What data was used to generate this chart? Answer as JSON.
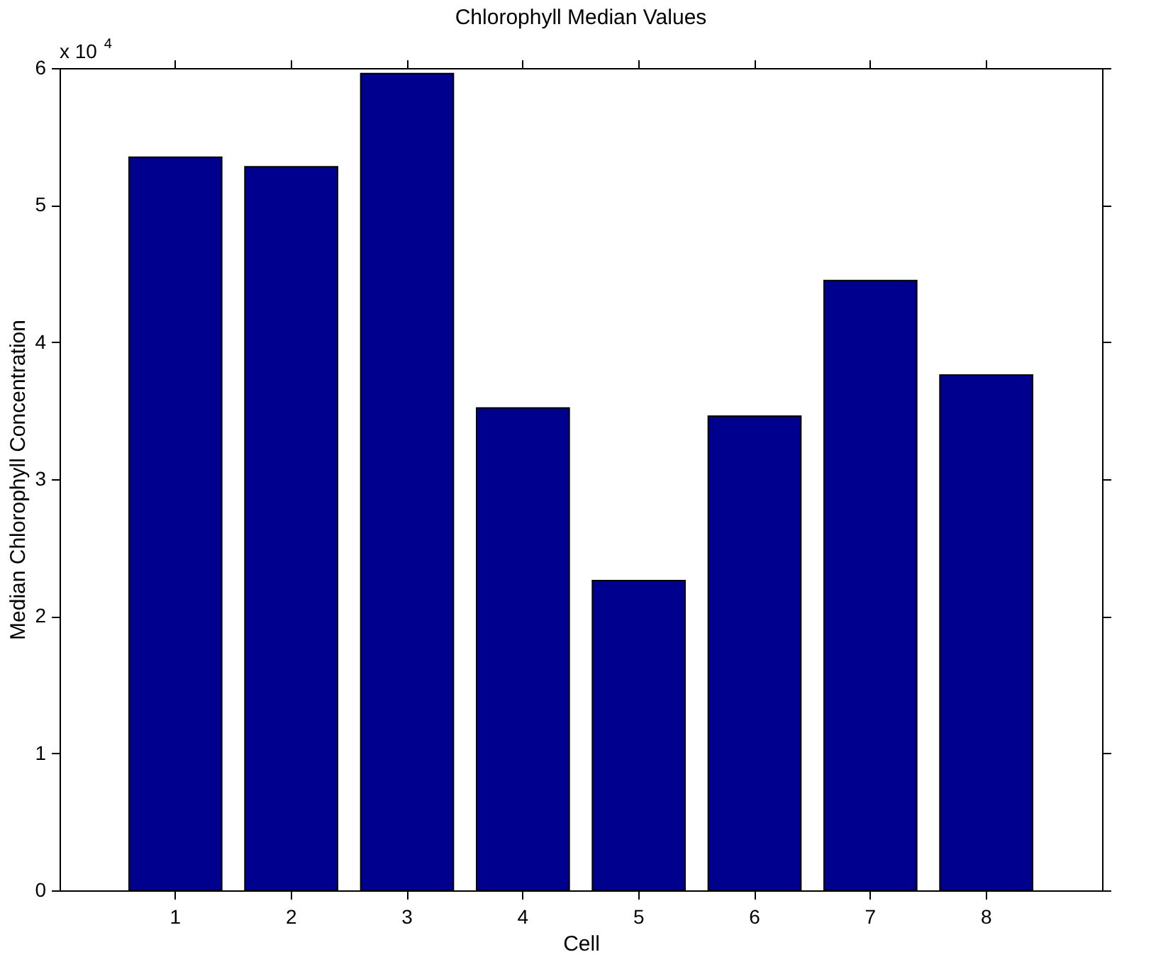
{
  "chart_data": {
    "type": "bar",
    "title": "Chlorophyll Median Values",
    "xlabel": "Cell",
    "ylabel": "Median Chlorophyll Concentration",
    "categories": [
      "1",
      "2",
      "3",
      "4",
      "5",
      "6",
      "7",
      "8"
    ],
    "values": [
      5.35,
      5.28,
      5.96,
      3.52,
      2.26,
      3.46,
      4.45,
      3.76
    ],
    "color": "#00008f",
    "ylim": [
      0,
      6
    ],
    "yticks": [
      0,
      1,
      2,
      3,
      4,
      5,
      6
    ],
    "annotations": [
      "x 10$^{4}$"
    ],
    "grid": false
  }
}
